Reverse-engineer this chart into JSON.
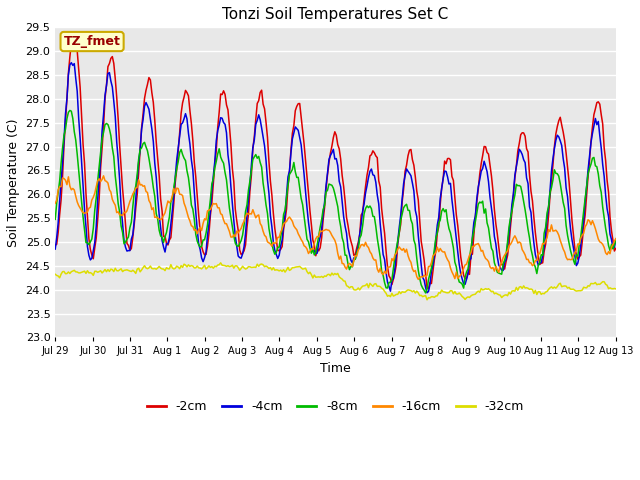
{
  "title": "Tonzi Soil Temperatures Set C",
  "xlabel": "Time",
  "ylabel": "Soil Temperature (C)",
  "ylim": [
    23.0,
    29.5
  ],
  "yticks": [
    23.0,
    23.5,
    24.0,
    24.5,
    25.0,
    25.5,
    26.0,
    26.5,
    27.0,
    27.5,
    28.0,
    28.5,
    29.0,
    29.5
  ],
  "colors": {
    "-2cm": "#dd0000",
    "-4cm": "#0000dd",
    "-8cm": "#00bb00",
    "-16cm": "#ff8800",
    "-32cm": "#dddd00"
  },
  "legend_label": "TZ_fmet",
  "legend_box_facecolor": "#ffffcc",
  "legend_box_edgecolor": "#ccaa00",
  "fig_facecolor": "#ffffff",
  "axes_facecolor": "#e8e8e8",
  "grid_color": "#ffffff",
  "xtick_labels": [
    "Jul 29",
    "Jul 30",
    "Jul 31",
    "Aug 1",
    "Aug 2",
    "Aug 3",
    "Aug 4",
    "Aug 5",
    "Aug 6",
    "Aug 7",
    "Aug 8",
    "Aug 9",
    "Aug 10",
    "Aug 11",
    "Aug 12",
    "Aug 13"
  ],
  "figsize": [
    6.4,
    4.8
  ],
  "dpi": 100
}
